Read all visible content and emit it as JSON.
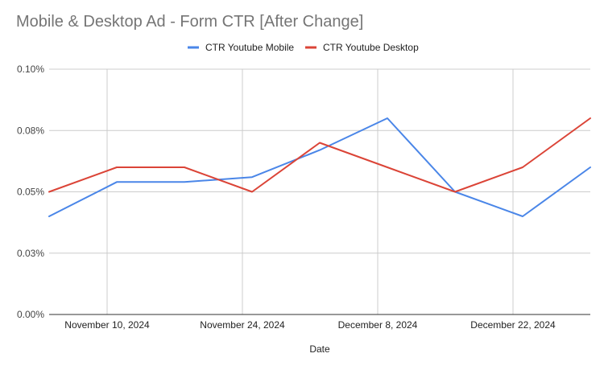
{
  "chart_data": {
    "type": "line",
    "title": "Mobile & Desktop Ad - Form CTR [After Change]",
    "xlabel": "Date",
    "ylabel": "",
    "x": [
      "2024-11-03",
      "2024-11-10",
      "2024-11-17",
      "2024-11-24",
      "2024-12-01",
      "2024-12-08",
      "2024-12-15",
      "2024-12-22",
      "2024-12-29"
    ],
    "x_tick_labels": [
      "November 10, 2024",
      "November 24, 2024",
      "December 8, 2024",
      "December 22, 2024"
    ],
    "x_tick_dates": [
      "2024-11-09",
      "2024-11-23",
      "2024-12-07",
      "2024-12-21"
    ],
    "x_range": [
      "2024-11-03",
      "2024-12-29"
    ],
    "ylim": [
      0,
      0.1
    ],
    "y_ticks": [
      0,
      0.025,
      0.05,
      0.075,
      0.1
    ],
    "y_tick_labels": [
      "0.00%",
      "0.03%",
      "0.05%",
      "0.08%",
      "0.10%"
    ],
    "grid": true,
    "legend_position": "top-center",
    "series": [
      {
        "name": "CTR Youtube Mobile",
        "color": "#4a86e8",
        "x": [
          "2024-11-03",
          "2024-11-10",
          "2024-11-17",
          "2024-11-24",
          "2024-12-01",
          "2024-12-08",
          "2024-12-15",
          "2024-12-22",
          "2024-12-29"
        ],
        "values": [
          0.04,
          0.054,
          0.054,
          0.056,
          0.067,
          0.08,
          0.05,
          0.04,
          0.06
        ]
      },
      {
        "name": "CTR Youtube Desktop",
        "color": "#db4437",
        "x": [
          "2024-11-03",
          "2024-11-10",
          "2024-11-17",
          "2024-11-24",
          "2024-12-01",
          "2024-12-08",
          "2024-12-15",
          "2024-12-22",
          "2024-12-29"
        ],
        "values": [
          0.05,
          0.06,
          0.06,
          0.05,
          0.07,
          0.06,
          0.05,
          0.06,
          0.08
        ]
      }
    ]
  }
}
